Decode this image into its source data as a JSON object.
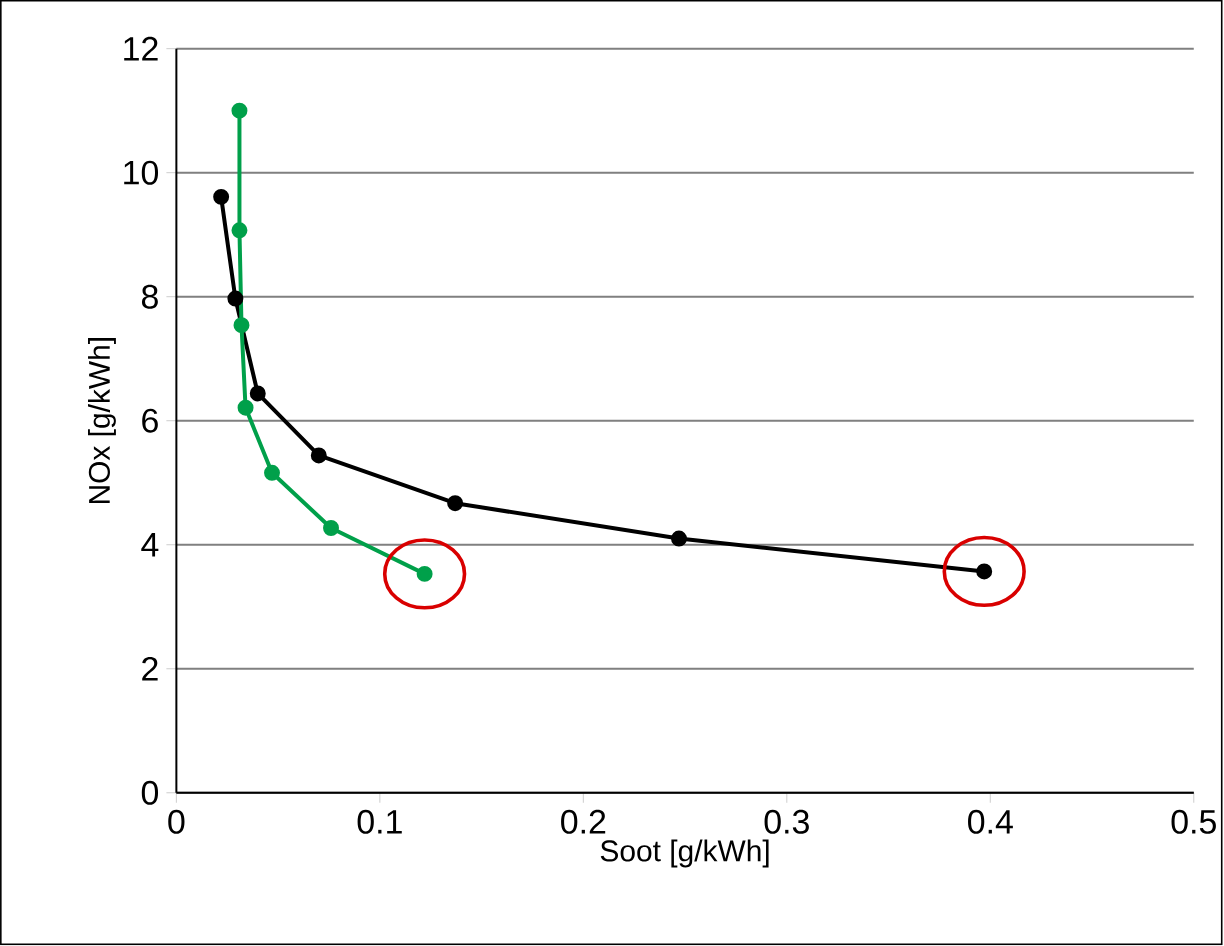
{
  "chart_data": {
    "type": "line",
    "xlabel": "Soot [g/kWh]",
    "ylabel": "NOx [g/kWh]",
    "xlim": [
      0,
      0.5
    ],
    "ylim": [
      0,
      12
    ],
    "xticks": [
      0,
      0.1,
      0.2,
      0.3,
      0.4,
      0.5
    ],
    "yticks": [
      0,
      2,
      4,
      6,
      8,
      10,
      12
    ],
    "grid": "y",
    "marker": "circle",
    "line_style": "solid",
    "series": [
      {
        "color": "#000000",
        "x": [
          0.022,
          0.029,
          0.04,
          0.07,
          0.137,
          0.247,
          0.397
        ],
        "values": [
          9.61,
          7.97,
          6.44,
          5.44,
          4.67,
          4.1,
          3.57
        ]
      },
      {
        "color": "#00a04a",
        "x": [
          0.031,
          0.031,
          0.032,
          0.034,
          0.047,
          0.076,
          0.122
        ],
        "values": [
          11.0,
          9.07,
          7.54,
          6.21,
          5.16,
          4.27,
          3.53
        ]
      }
    ]
  }
}
